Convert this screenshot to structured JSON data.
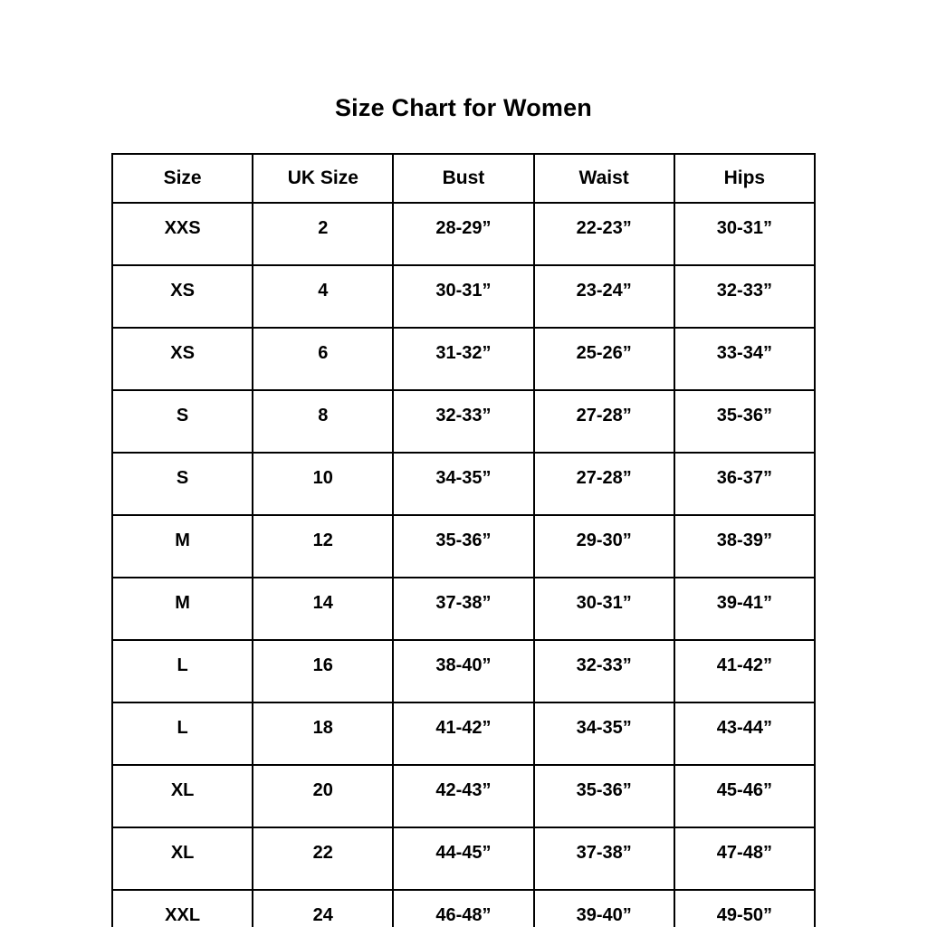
{
  "page": {
    "title": "Size Chart for Women"
  },
  "colors": {
    "background": "#ffffff",
    "text": "#000000",
    "table_border": "#000000"
  },
  "table": {
    "headers": [
      "Size",
      "UK Size",
      "Bust",
      "Waist",
      "Hips"
    ],
    "rows": [
      [
        "XXS",
        "2",
        "28-29”",
        "22-23”",
        "30-31”"
      ],
      [
        "XS",
        "4",
        "30-31”",
        "23-24”",
        "32-33”"
      ],
      [
        "XS",
        "6",
        "31-32”",
        "25-26”",
        "33-34”"
      ],
      [
        "S",
        "8",
        "32-33”",
        "27-28”",
        "35-36”"
      ],
      [
        "S",
        "10",
        "34-35”",
        "27-28”",
        "36-37”"
      ],
      [
        "M",
        "12",
        "35-36”",
        "29-30”",
        "38-39”"
      ],
      [
        "M",
        "14",
        "37-38”",
        "30-31”",
        "39-41”"
      ],
      [
        "L",
        "16",
        "38-40”",
        "32-33”",
        "41-42”"
      ],
      [
        "L",
        "18",
        "41-42”",
        "34-35”",
        "43-44”"
      ],
      [
        "XL",
        "20",
        "42-43”",
        "35-36”",
        "45-46”"
      ],
      [
        "XL",
        "22",
        "44-45”",
        "37-38”",
        "47-48”"
      ],
      [
        "XXL",
        "24",
        "46-48”",
        "39-40”",
        "49-50”"
      ]
    ]
  },
  "chart_data": {
    "type": "table",
    "title": "Size Chart for Women",
    "columns": [
      "Size",
      "UK Size",
      "Bust",
      "Waist",
      "Hips"
    ],
    "rows": [
      [
        "XXS",
        "2",
        "28-29”",
        "22-23”",
        "30-31”"
      ],
      [
        "XS",
        "4",
        "30-31”",
        "23-24”",
        "32-33”"
      ],
      [
        "XS",
        "6",
        "31-32”",
        "25-26”",
        "33-34”"
      ],
      [
        "S",
        "8",
        "32-33”",
        "27-28”",
        "35-36”"
      ],
      [
        "S",
        "10",
        "34-35”",
        "27-28”",
        "36-37”"
      ],
      [
        "M",
        "12",
        "35-36”",
        "29-30”",
        "38-39”"
      ],
      [
        "M",
        "14",
        "37-38”",
        "30-31”",
        "39-41”"
      ],
      [
        "L",
        "16",
        "38-40”",
        "32-33”",
        "41-42”"
      ],
      [
        "L",
        "18",
        "41-42”",
        "34-35”",
        "43-44”"
      ],
      [
        "XL",
        "20",
        "42-43”",
        "35-36”",
        "45-46”"
      ],
      [
        "XL",
        "22",
        "44-45”",
        "37-38”",
        "47-48”"
      ],
      [
        "XXL",
        "24",
        "46-48”",
        "39-40”",
        "49-50”"
      ]
    ],
    "layout": {
      "grid": "full-borders",
      "text_color": "#000000",
      "border_color": "#000000",
      "background": "#ffffff",
      "title_position": "top-center"
    }
  }
}
